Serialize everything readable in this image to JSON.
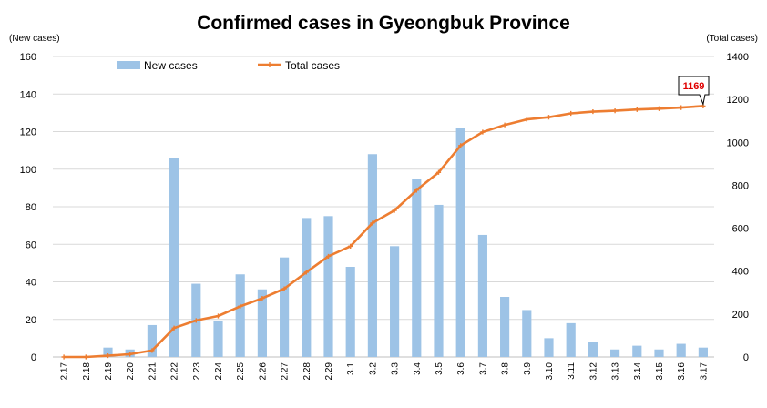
{
  "chart_data": {
    "type": "bar+line",
    "title": "Confirmed cases in Gyeongbuk Province",
    "left_axis_label": "(New cases)",
    "right_axis_label": "(Total cases)",
    "categories": [
      "2.17",
      "2.18",
      "2.19",
      "2.20",
      "2.21",
      "2.22",
      "2.23",
      "2.24",
      "2.25",
      "2.26",
      "2.27",
      "2.28",
      "2.29",
      "3.1",
      "3.2",
      "3.3",
      "3.4",
      "3.5",
      "3.6",
      "3.7",
      "3.8",
      "3.9",
      "3.10",
      "3.11",
      "3.12",
      "3.13",
      "3.14",
      "3.15",
      "3.16",
      "3.17"
    ],
    "series": [
      {
        "name": "New cases",
        "type": "bar",
        "axis": "left",
        "color": "#9dc3e6",
        "values": [
          0,
          0,
          5,
          4,
          17,
          106,
          39,
          19,
          44,
          36,
          53,
          74,
          75,
          48,
          108,
          59,
          95,
          81,
          122,
          65,
          32,
          25,
          10,
          18,
          8,
          4,
          6,
          4,
          7,
          5
        ]
      },
      {
        "name": "Total cases",
        "type": "line",
        "axis": "right",
        "color": "#ed7d31",
        "values": [
          0,
          0,
          6,
          13,
          30,
          135,
          170,
          191,
          236,
          273,
          318,
          395,
          469,
          516,
          624,
          683,
          777,
          860,
          985,
          1048,
          1081,
          1107,
          1117,
          1135,
          1143,
          1147,
          1153,
          1157,
          1162,
          1169
        ]
      }
    ],
    "y_left": {
      "min": 0,
      "max": 160,
      "ticks": [
        0,
        20,
        40,
        60,
        80,
        100,
        120,
        140,
        160
      ]
    },
    "y_right": {
      "min": 0,
      "max": 1400,
      "ticks": [
        0,
        200,
        400,
        600,
        800,
        1000,
        1200,
        1400
      ]
    },
    "grid": true,
    "legend_position": "top-left",
    "annotation": {
      "text": "1169",
      "category": "3.17",
      "color": "#e00000"
    }
  }
}
